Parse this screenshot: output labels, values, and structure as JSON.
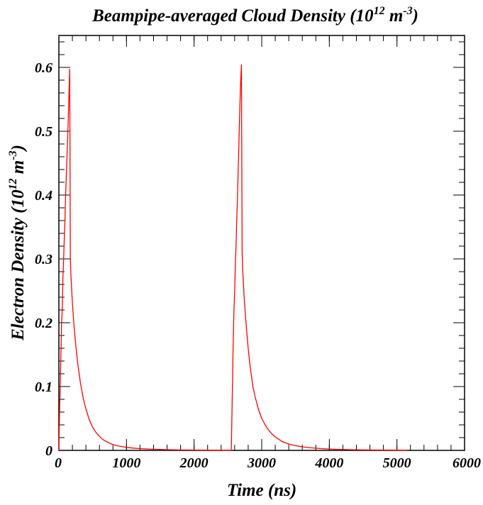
{
  "chart_data": {
    "type": "line",
    "title": {
      "main": "Beampipe-averaged Cloud Density (10",
      "exp1": "12",
      "mid": " m",
      "exp2": "-3",
      "close": ")"
    },
    "xlabel": "Time (ns)",
    "ylabel": {
      "main": "Electron Density (10",
      "exp1": "12",
      "mid": " m",
      "exp2": "-3",
      "close": ")"
    },
    "xlim": [
      0,
      6000
    ],
    "ylim": [
      0,
      0.65
    ],
    "x_ticks": [
      {
        "value": 0,
        "label": "0"
      },
      {
        "value": 1000,
        "label": "1000"
      },
      {
        "value": 2000,
        "label": "2000"
      },
      {
        "value": 3000,
        "label": "3000"
      },
      {
        "value": 4000,
        "label": "4000"
      },
      {
        "value": 5000,
        "label": "5000"
      },
      {
        "value": 6000,
        "label": "6000"
      }
    ],
    "y_ticks": [
      {
        "value": 0,
        "label": "0"
      },
      {
        "value": 0.1,
        "label": "0.1"
      },
      {
        "value": 0.2,
        "label": "0.2"
      },
      {
        "value": 0.3,
        "label": "0.3"
      },
      {
        "value": 0.4,
        "label": "0.4"
      },
      {
        "value": 0.5,
        "label": "0.5"
      },
      {
        "value": 0.6,
        "label": "0.6"
      }
    ],
    "grid": false,
    "series_color": "#ff0000",
    "series": [
      {
        "x": [
          0,
          10,
          20,
          30,
          40,
          50,
          60,
          70,
          80,
          90,
          100,
          110,
          120,
          130,
          140,
          150,
          160,
          170,
          180,
          200,
          220,
          250,
          280,
          320,
          360,
          400,
          450,
          500,
          550,
          600,
          650,
          700,
          800,
          900,
          1000,
          1100,
          1200,
          1300,
          1400,
          1500,
          1600,
          1700,
          1800,
          2000,
          2200,
          2400,
          2550,
          2560,
          2570,
          2580,
          2590,
          2600,
          2610,
          2620,
          2630,
          2640,
          2650,
          2660,
          2670,
          2680,
          2690,
          2700,
          2710,
          2720,
          2730,
          2740,
          2760,
          2780,
          2800,
          2830,
          2870,
          2900,
          2950,
          3000,
          3050,
          3100,
          3150,
          3200,
          3300,
          3400,
          3500,
          3600,
          3700,
          3800,
          3900,
          4000,
          4100,
          4200,
          4300,
          4500,
          4700,
          5000,
          5150
        ],
        "y": [
          0.0,
          0.06,
          0.1,
          0.15,
          0.2,
          0.22,
          0.27,
          0.3,
          0.33,
          0.36,
          0.4,
          0.43,
          0.46,
          0.49,
          0.52,
          0.56,
          0.597,
          0.3,
          0.27,
          0.23,
          0.2,
          0.165,
          0.135,
          0.105,
          0.082,
          0.065,
          0.048,
          0.036,
          0.028,
          0.022,
          0.017,
          0.014,
          0.009,
          0.0065,
          0.0048,
          0.0036,
          0.0028,
          0.0022,
          0.0018,
          0.0014,
          0.0011,
          0.0009,
          0.0007,
          0.0005,
          0.0003,
          0.0002,
          0.0002,
          0.06,
          0.12,
          0.18,
          0.22,
          0.25,
          0.29,
          0.32,
          0.36,
          0.39,
          0.43,
          0.47,
          0.51,
          0.55,
          0.58,
          0.604,
          0.31,
          0.28,
          0.26,
          0.24,
          0.21,
          0.185,
          0.16,
          0.13,
          0.1,
          0.085,
          0.065,
          0.05,
          0.04,
          0.032,
          0.026,
          0.021,
          0.014,
          0.01,
          0.0075,
          0.0056,
          0.0043,
          0.0034,
          0.0027,
          0.0021,
          0.0017,
          0.0014,
          0.0011,
          0.0008,
          0.0005,
          0.0003,
          0.0002
        ]
      }
    ]
  }
}
